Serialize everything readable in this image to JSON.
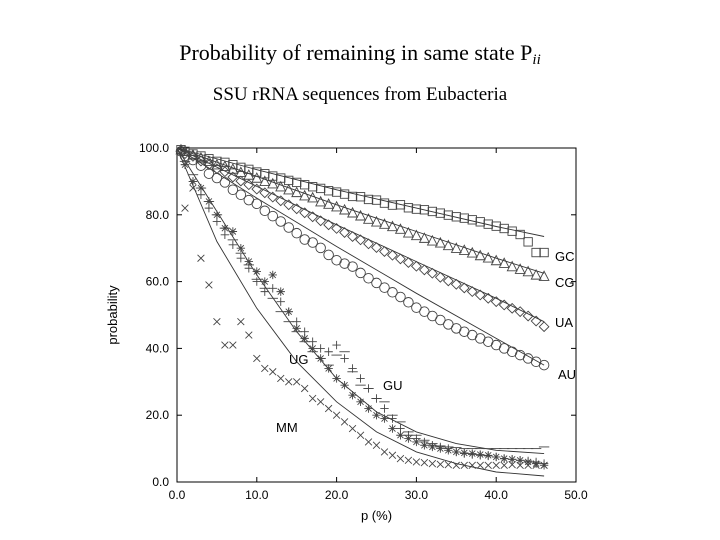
{
  "title": {
    "main": "Probability of remaining in same state P",
    "main_subscript": "ii",
    "subtitle": "SSU rRNA sequences from Eubacteria"
  },
  "chart_data": {
    "type": "scatter",
    "xlabel": "p (%)",
    "ylabel": "probability",
    "xlim": [
      0,
      50
    ],
    "ylim": [
      0,
      100
    ],
    "xticks": [
      "0.0",
      "10.0",
      "20.0",
      "30.0",
      "40.0",
      "50.0"
    ],
    "yticks": [
      "0.0",
      "20.0",
      "40.0",
      "60.0",
      "80.0",
      "100.0"
    ],
    "grid": false,
    "legend": "inline labels at series ends",
    "series": [
      {
        "name": "GC",
        "marker": "square",
        "x": [
          0.5,
          1,
          2,
          3,
          4,
          5,
          6,
          7,
          8,
          9,
          10,
          11,
          12,
          13,
          14,
          15,
          16,
          17,
          18,
          19,
          20,
          21,
          22,
          23,
          24,
          25,
          26,
          27,
          28,
          29,
          30,
          31,
          32,
          33,
          34,
          35,
          36,
          37,
          38,
          39,
          40,
          41,
          42,
          43,
          44,
          45,
          46
        ],
        "y": [
          99.5,
          99,
          98.2,
          97.6,
          96.8,
          96,
          95.7,
          95,
          94.2,
          93.6,
          92.8,
          92.3,
          91.6,
          91,
          90.3,
          89.7,
          89,
          88.4,
          87.9,
          87.2,
          86.8,
          86.2,
          85.5,
          85.4,
          84.6,
          84.4,
          83.5,
          82.9,
          83,
          82.1,
          81.7,
          81.5,
          81,
          80.5,
          79.9,
          79.4,
          79,
          78.5,
          77.9,
          77.2,
          76.6,
          75.9,
          75.1,
          74.1,
          71.9,
          68.7,
          68.7
        ],
        "fit": [
          [
            0,
            100
          ],
          [
            10,
            93.5
          ],
          [
            20,
            87.5
          ],
          [
            30,
            82
          ],
          [
            40,
            76.5
          ],
          [
            46,
            73.5
          ]
        ]
      },
      {
        "name": "CG",
        "marker": "triangle",
        "x": [
          0.5,
          1,
          2,
          3,
          4,
          5,
          6,
          7,
          8,
          9,
          10,
          11,
          12,
          13,
          14,
          15,
          16,
          17,
          18,
          19,
          20,
          21,
          22,
          23,
          24,
          25,
          26,
          27,
          28,
          29,
          30,
          31,
          32,
          33,
          34,
          35,
          36,
          37,
          38,
          39,
          40,
          41,
          42,
          43,
          44,
          45,
          46
        ],
        "y": [
          99.5,
          99,
          97.9,
          97,
          96,
          95,
          94.5,
          93.7,
          92.7,
          91.9,
          91,
          90,
          89.3,
          88.4,
          87.5,
          86.7,
          85.7,
          85.1,
          83.9,
          83.2,
          82.4,
          81.5,
          80.6,
          79.7,
          78.7,
          77.9,
          77.2,
          76.5,
          75.7,
          74.6,
          73.8,
          73,
          72.2,
          71.6,
          70.8,
          70,
          69.4,
          68.6,
          67.8,
          67.1,
          66.3,
          65.5,
          64.5,
          63.7,
          63,
          62,
          61.6
        ],
        "fit": [
          [
            0,
            100
          ],
          [
            10,
            91.5
          ],
          [
            20,
            83
          ],
          [
            30,
            75
          ],
          [
            40,
            67
          ],
          [
            46,
            62.5
          ]
        ]
      },
      {
        "name": "UA",
        "marker": "diamond",
        "x": [
          0.5,
          1,
          2,
          3,
          4,
          5,
          6,
          7,
          8,
          9,
          10,
          11,
          12,
          13,
          14,
          15,
          16,
          17,
          18,
          19,
          20,
          21,
          22,
          23,
          24,
          25,
          26,
          27,
          28,
          29,
          30,
          31,
          32,
          33,
          34,
          35,
          36,
          37,
          38,
          39,
          40,
          41,
          42,
          43,
          44,
          45,
          46
        ],
        "y": [
          99,
          98.3,
          97.5,
          96.1,
          95,
          93.8,
          92.9,
          91.3,
          90.1,
          89,
          87.7,
          86.6,
          85.3,
          84.2,
          83,
          81.8,
          80.6,
          79.4,
          78.2,
          77,
          75.9,
          74.7,
          73.5,
          72.5,
          71.3,
          70.2,
          69,
          67.9,
          66.8,
          65.7,
          64.6,
          63.5,
          62.5,
          61.3,
          60.2,
          59.2,
          58.1,
          57,
          56,
          55,
          54,
          53,
          52,
          51,
          49.7,
          48.2,
          46.5
        ],
        "fit": [
          [
            0,
            100
          ],
          [
            10,
            88.5
          ],
          [
            20,
            77
          ],
          [
            30,
            66
          ],
          [
            40,
            55
          ],
          [
            46,
            48
          ]
        ]
      },
      {
        "name": "AU",
        "marker": "circle",
        "x": [
          0.5,
          1,
          2,
          3,
          4,
          5,
          6,
          7,
          8,
          9,
          10,
          11,
          12,
          13,
          14,
          15,
          16,
          17,
          18,
          19,
          20,
          21,
          22,
          23,
          24,
          25,
          26,
          27,
          28,
          29,
          30,
          31,
          32,
          33,
          34,
          35,
          36,
          37,
          38,
          39,
          40,
          41,
          42,
          43,
          44,
          45,
          46
        ],
        "y": [
          99,
          97.6,
          96.4,
          94.7,
          92.3,
          91,
          89.7,
          87.5,
          86,
          84.4,
          83.3,
          81.2,
          79.6,
          78,
          76.2,
          74.5,
          72.6,
          71.7,
          70.1,
          68,
          66.4,
          65.4,
          64.5,
          62.6,
          61,
          59.6,
          58.2,
          56.8,
          55.4,
          53.8,
          52.2,
          51,
          49.7,
          48.5,
          47.2,
          46,
          45,
          44,
          43,
          42,
          41,
          40,
          39,
          38,
          37,
          36,
          35
        ],
        "fit": [
          [
            0,
            100
          ],
          [
            10,
            85
          ],
          [
            20,
            70.5
          ],
          [
            30,
            56.5
          ],
          [
            40,
            43
          ],
          [
            46,
            35
          ]
        ]
      },
      {
        "name": "GU",
        "marker": "dash",
        "x": [
          1,
          2,
          3,
          4,
          5,
          6,
          7,
          8,
          9,
          10,
          11,
          12,
          13,
          14,
          15,
          16,
          17,
          18,
          19,
          20,
          21,
          22,
          23,
          24,
          25,
          26,
          27,
          28,
          29,
          30,
          31,
          32,
          33,
          34,
          35,
          36,
          37,
          38,
          39,
          40,
          41,
          42,
          43,
          44,
          45,
          46
        ],
        "y": [
          96,
          92,
          88,
          84,
          80,
          76,
          72.5,
          68.5,
          65,
          60.7,
          58,
          55,
          51,
          48,
          45,
          42,
          39,
          37,
          35,
          38,
          39,
          33,
          29,
          28,
          25,
          24,
          20,
          18,
          15,
          14,
          12.5,
          11.5,
          10.8,
          10.5,
          10.3,
          10,
          10,
          10,
          10,
          10,
          10,
          10,
          10,
          10,
          10,
          10.5
        ]
      },
      {
        "name": "UG",
        "marker": "plus",
        "x": [
          1,
          2,
          3,
          4,
          5,
          6,
          7,
          8,
          9,
          10,
          11,
          12,
          13,
          14,
          15,
          16,
          17,
          18,
          19,
          20,
          21,
          22,
          23,
          24,
          25,
          26,
          27,
          28,
          29,
          30,
          31,
          32,
          33,
          34,
          35,
          36,
          37,
          38,
          39,
          40,
          41,
          42,
          43,
          44,
          45,
          46
        ],
        "y": [
          95,
          90,
          86,
          82,
          78,
          74,
          71,
          67,
          64,
          60,
          57,
          58,
          54,
          51,
          48,
          45,
          42,
          40,
          39,
          41,
          37,
          34,
          31,
          28,
          25,
          22,
          19,
          16,
          14,
          13,
          12,
          11,
          10.5,
          10,
          9,
          8.5,
          8.2,
          8,
          7.8,
          7.5,
          7,
          6.8,
          6.5,
          6.3,
          6,
          5.5
        ]
      },
      {
        "name": "",
        "marker": "asterisk",
        "x": [
          1,
          2,
          3,
          4,
          5,
          6,
          7,
          8,
          9,
          10,
          11,
          12,
          13,
          14,
          15,
          16,
          17,
          18,
          19,
          20,
          21,
          22,
          23,
          24,
          25,
          26,
          27,
          28,
          29,
          30,
          31,
          32,
          33,
          34,
          35,
          36,
          37,
          38,
          39,
          40,
          41,
          42,
          43,
          44,
          45,
          46
        ],
        "y": [
          95,
          90,
          88,
          84,
          80,
          76,
          75,
          70,
          66,
          63,
          60,
          62,
          57,
          51,
          46,
          43,
          40,
          37,
          34,
          31,
          29,
          26,
          24,
          22,
          20,
          19,
          16,
          14,
          13,
          12,
          11,
          10.5,
          10,
          9.5,
          9,
          8.7,
          8.5,
          8.2,
          8,
          7.5,
          7,
          6.8,
          6.5,
          6,
          5.5,
          5
        ],
        "fit": [
          [
            0,
            100
          ],
          [
            5,
            81
          ],
          [
            10,
            62
          ],
          [
            15,
            45
          ],
          [
            20,
            31
          ],
          [
            25,
            21
          ],
          [
            30,
            15
          ],
          [
            35,
            11.5
          ],
          [
            40,
            9.5
          ],
          [
            46,
            8.5
          ]
        ]
      },
      {
        "name": "MM",
        "marker": "cross",
        "x": [
          1,
          2,
          3,
          4,
          5,
          6,
          7,
          8,
          9,
          10,
          11,
          12,
          13,
          14,
          15,
          16,
          17,
          18,
          19,
          20,
          21,
          22,
          23,
          24,
          25,
          26,
          27,
          28,
          29,
          30,
          31,
          32,
          33,
          34,
          35,
          36,
          37,
          38,
          39,
          40,
          41,
          42,
          43,
          44,
          45,
          46
        ],
        "y": [
          82,
          88,
          67,
          59,
          48,
          41,
          41,
          48,
          44,
          37,
          34,
          33,
          31,
          30,
          30,
          28,
          25,
          24,
          22,
          20,
          18,
          16,
          14,
          12,
          11,
          9,
          8,
          7,
          6.5,
          6,
          5.8,
          5.5,
          5.3,
          5.2,
          5,
          5,
          5,
          5,
          5,
          5,
          5,
          5.2,
          5,
          5,
          5,
          5
        ],
        "fit": [
          [
            0,
            100
          ],
          [
            5,
            72
          ],
          [
            10,
            52
          ],
          [
            15,
            36
          ],
          [
            20,
            24
          ],
          [
            25,
            15
          ],
          [
            30,
            9
          ],
          [
            35,
            5.5
          ],
          [
            40,
            3
          ],
          [
            46,
            1.8
          ]
        ]
      }
    ]
  }
}
